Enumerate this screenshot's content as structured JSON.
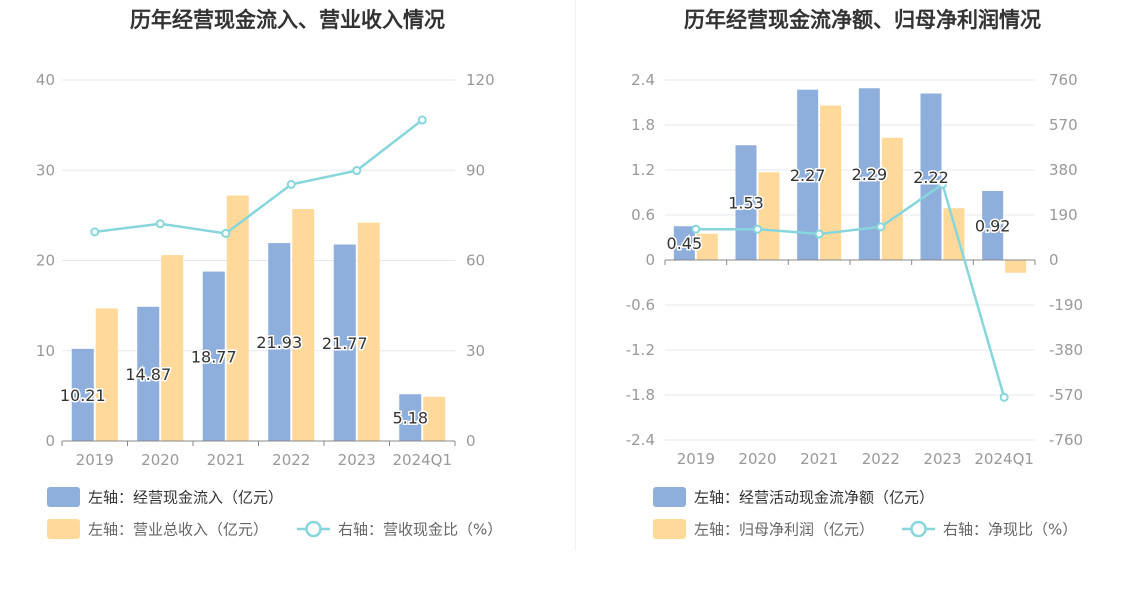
{
  "charts": {
    "left": {
      "title": "历年经营现金流入、营业收入情况"
    },
    "right": {
      "title": "历年经营现金流净额、归母净利润情况"
    }
  },
  "colors": {
    "bar_blue": "#8eaedc",
    "bar_yellow": "#ffd99a",
    "line": "#86d6dc",
    "grid": "#e6e8f0",
    "axis": "#888888"
  },
  "chart_data": [
    {
      "id": "left",
      "type": "bar",
      "title": "历年经营现金流入、营业收入情况",
      "categories": [
        "2019",
        "2020",
        "2021",
        "2022",
        "2023",
        "2024Q1"
      ],
      "left_axis": {
        "min": 0,
        "max": 40,
        "ticks": [
          "0",
          "10",
          "20",
          "30",
          "40"
        ],
        "tick_values": [
          0,
          10,
          20,
          30,
          40
        ]
      },
      "right_axis": {
        "min": 0,
        "max": 120,
        "ticks": [
          "0",
          "30",
          "60",
          "90",
          "120"
        ],
        "tick_values": [
          0,
          30,
          60,
          90,
          120
        ]
      },
      "series": [
        {
          "name": "左轴：经营现金流入（亿元）",
          "axis": "left",
          "kind": "bar",
          "color_key": "bar_blue",
          "values": [
            10.21,
            14.87,
            18.77,
            21.93,
            21.77,
            5.18
          ],
          "labels": [
            "10.21",
            "14.87",
            "18.77",
            "21.93",
            "21.77",
            "5.18"
          ]
        },
        {
          "name": "左轴：营业总收入（亿元）",
          "axis": "left",
          "kind": "bar",
          "color_key": "bar_yellow",
          "values": [
            14.7,
            20.6,
            27.2,
            25.7,
            24.2,
            4.9
          ]
        },
        {
          "name": "右轴：营收现金比（%）",
          "axis": "right",
          "kind": "line",
          "color_key": "line",
          "values": [
            69.5,
            72.2,
            69.0,
            85.3,
            89.9,
            106.7
          ]
        }
      ],
      "legend": [
        {
          "label": "左轴：经营现金流入（亿元）",
          "kind": "bar",
          "color_key": "bar_blue",
          "dark": true
        },
        {
          "label": "左轴：营业总收入（亿元）",
          "kind": "bar",
          "color_key": "bar_yellow",
          "dark": false
        },
        {
          "label": "右轴：营收现金比（%）",
          "kind": "line",
          "color_key": "line",
          "dark": false
        }
      ]
    },
    {
      "id": "right",
      "type": "bar",
      "title": "历年经营现金流净额、归母净利润情况",
      "categories": [
        "2019",
        "2020",
        "2021",
        "2022",
        "2023",
        "2024Q1"
      ],
      "left_axis": {
        "min": -2.4,
        "max": 2.4,
        "ticks": [
          "2.4",
          "1.8",
          "1.2",
          "0.6",
          "0",
          "-0.6",
          "-1.2",
          "-1.8",
          "-2.4"
        ],
        "tick_values": [
          2.4,
          1.8,
          1.2,
          0.6,
          0,
          -0.6,
          -1.2,
          -1.8,
          -2.4
        ]
      },
      "right_axis": {
        "min": -760,
        "max": 760,
        "ticks": [
          "760",
          "570",
          "380",
          "190",
          "0",
          "-190",
          "-380",
          "-570",
          "-760"
        ],
        "tick_values": [
          760,
          570,
          380,
          190,
          0,
          -190,
          -380,
          -570,
          -760
        ]
      },
      "series": [
        {
          "name": "左轴：经营活动现金流净额（亿元）",
          "axis": "left",
          "kind": "bar",
          "color_key": "bar_blue",
          "values": [
            0.45,
            1.53,
            2.27,
            2.29,
            2.22,
            0.92
          ],
          "labels": [
            "0.45",
            "1.53",
            "2.27",
            "2.29",
            "2.22",
            "0.92"
          ]
        },
        {
          "name": "左轴：归母净利润（亿元）",
          "axis": "left",
          "kind": "bar",
          "color_key": "bar_yellow",
          "values": [
            0.35,
            1.17,
            2.06,
            1.63,
            0.69,
            -0.17
          ]
        },
        {
          "name": "右轴：净现比（%）",
          "axis": "right",
          "kind": "line",
          "color_key": "line",
          "values": [
            130,
            130,
            110,
            140,
            320,
            -580
          ]
        }
      ],
      "legend": [
        {
          "label": "左轴：经营活动现金流净额（亿元）",
          "kind": "bar",
          "color_key": "bar_blue",
          "dark": true
        },
        {
          "label": "左轴：归母净利润（亿元）",
          "kind": "bar",
          "color_key": "bar_yellow",
          "dark": false
        },
        {
          "label": "右轴：净现比（%）",
          "kind": "line",
          "color_key": "line",
          "dark": false
        }
      ]
    }
  ]
}
